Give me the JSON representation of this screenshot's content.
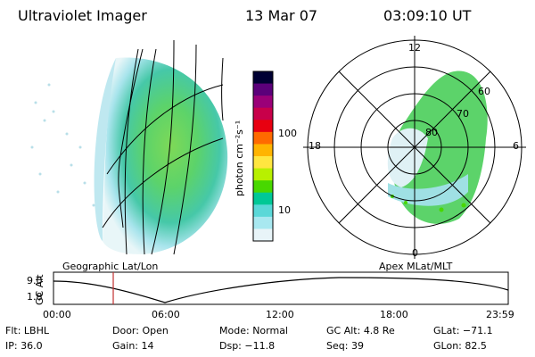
{
  "header": {
    "instrument": "Ultraviolet Imager",
    "date": "13 Mar 07",
    "time": "03:09:10 UT"
  },
  "colorbar": {
    "unit": "photon cm⁻²s⁻¹",
    "ticks": [
      "100",
      "10"
    ],
    "colors": [
      "#000033",
      "#5b007a",
      "#9a0078",
      "#c8004a",
      "#e80010",
      "#ff6a00",
      "#ffb400",
      "#ffe640",
      "#b8f000",
      "#48d800",
      "#00c896",
      "#5ad8d8",
      "#a8e8f0",
      "#e8f4f8"
    ]
  },
  "geo_panel": {
    "label": "Geographic Lat/Lon"
  },
  "polar_panel": {
    "label": "Apex MLat/MLT",
    "mlt_labels": {
      "top": "12",
      "left": "18",
      "right": "6",
      "bottom": "0"
    },
    "lat_labels": [
      "60",
      "70",
      "80"
    ]
  },
  "altitude_plot": {
    "ylabel": "GC Alt",
    "yticks": [
      "9.0",
      "1.8"
    ],
    "xticks": [
      "00:00",
      "06:00",
      "12:00",
      "18:00",
      "23:59"
    ],
    "marker_time": "03:09"
  },
  "info": {
    "row1": [
      {
        "label": "Flt:",
        "value": "LBHL"
      },
      {
        "label": "Door:",
        "value": "Open"
      },
      {
        "label": "Mode:",
        "value": "Normal"
      },
      {
        "label": "GC Alt:",
        "value": "4.8 Re"
      },
      {
        "label": "GLat:",
        "value": "−71.1"
      }
    ],
    "row2": [
      {
        "label": "IP:",
        "value": "36.0"
      },
      {
        "label": "Gain:",
        "value": "14"
      },
      {
        "label": "Dsp:",
        "value": "−11.8"
      },
      {
        "label": "Seq:",
        "value": "39"
      },
      {
        "label": "GLon:",
        "value": "82.5"
      }
    ]
  }
}
